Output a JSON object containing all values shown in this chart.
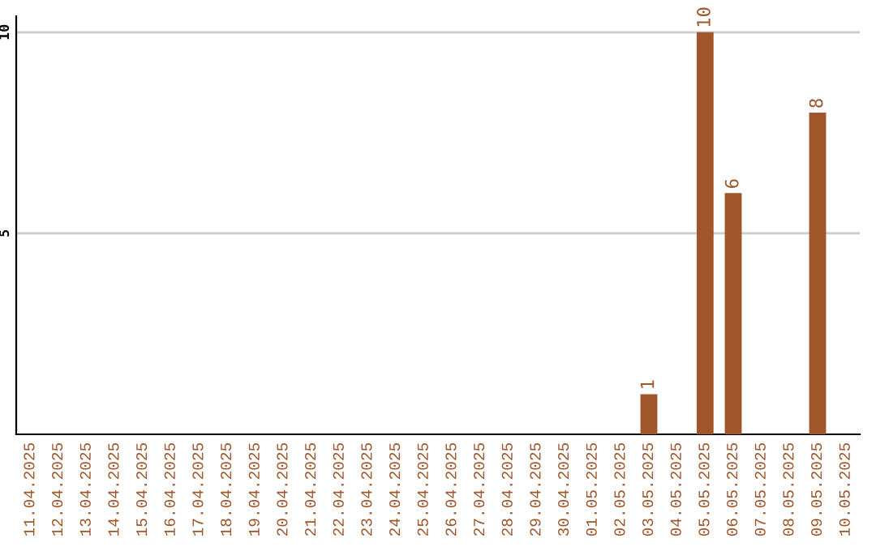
{
  "chart_data": {
    "type": "bar",
    "categories": [
      "11.04.2025",
      "12.04.2025",
      "13.04.2025",
      "14.04.2025",
      "15.04.2025",
      "16.04.2025",
      "17.04.2025",
      "18.04.2025",
      "19.04.2025",
      "20.04.2025",
      "21.04.2025",
      "22.04.2025",
      "23.04.2025",
      "24.04.2025",
      "25.04.2025",
      "26.04.2025",
      "27.04.2025",
      "28.04.2025",
      "29.04.2025",
      "30.04.2025",
      "01.05.2025",
      "02.05.2025",
      "03.05.2025",
      "04.05.2025",
      "05.05.2025",
      "06.05.2025",
      "07.05.2025",
      "08.05.2025",
      "09.05.2025",
      "10.05.2025"
    ],
    "values": [
      0,
      0,
      0,
      0,
      0,
      0,
      0,
      0,
      0,
      0,
      0,
      0,
      0,
      0,
      0,
      0,
      0,
      0,
      0,
      0,
      0,
      0,
      1,
      0,
      10,
      6,
      0,
      0,
      8,
      0
    ],
    "value_labels": [
      null,
      null,
      null,
      null,
      null,
      null,
      null,
      null,
      null,
      null,
      null,
      null,
      null,
      null,
      null,
      null,
      null,
      null,
      null,
      null,
      null,
      null,
      "1",
      null,
      "10",
      "6",
      null,
      null,
      "8",
      null
    ],
    "color": "#a0562a",
    "ylim": [
      0,
      10.4
    ],
    "yticks": [
      5,
      10
    ],
    "grid": "y"
  }
}
